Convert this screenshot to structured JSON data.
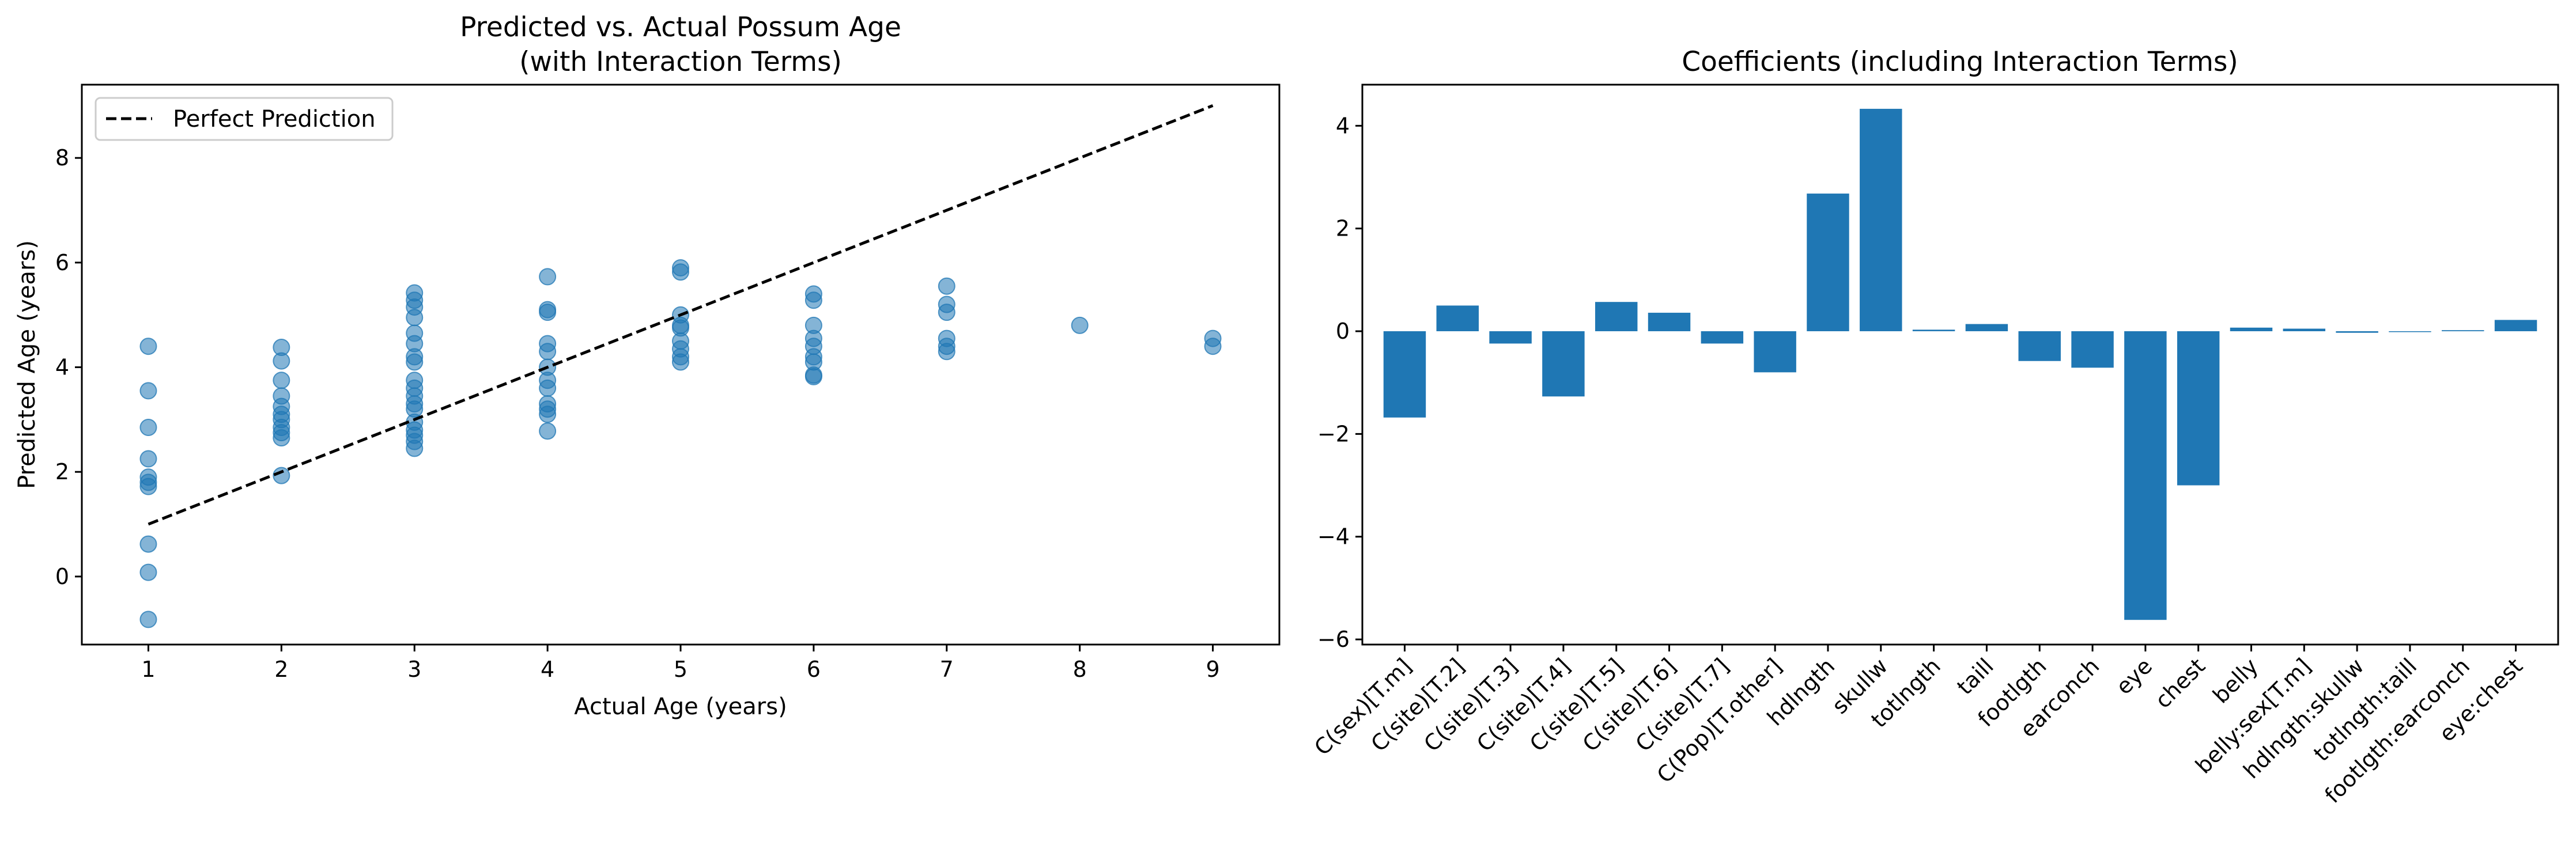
{
  "chart_data": [
    {
      "type": "scatter",
      "title": "Predicted vs. Actual Possum Age",
      "subtitle": "(with Interaction Terms)",
      "xlabel": "Actual Age (years)",
      "ylabel": "Predicted Age (years)",
      "xlim": [
        0.5,
        9.5
      ],
      "ylim": [
        -1.3,
        9.4
      ],
      "xticks": [
        1,
        2,
        3,
        4,
        5,
        6,
        7,
        8,
        9
      ],
      "yticks": [
        0,
        2,
        4,
        6,
        8
      ],
      "grid": false,
      "legend_position": "top-left",
      "point_color": "#1f77b4",
      "line_color": "#000000",
      "points": [
        {
          "x": 1,
          "y": 4.4
        },
        {
          "x": 1,
          "y": 3.55
        },
        {
          "x": 1,
          "y": 2.85
        },
        {
          "x": 1,
          "y": 2.25
        },
        {
          "x": 1,
          "y": 1.9
        },
        {
          "x": 1,
          "y": 1.8
        },
        {
          "x": 1,
          "y": 1.72
        },
        {
          "x": 1,
          "y": 0.62
        },
        {
          "x": 1,
          "y": 0.08
        },
        {
          "x": 1,
          "y": -0.82
        },
        {
          "x": 2,
          "y": 4.38
        },
        {
          "x": 2,
          "y": 4.12
        },
        {
          "x": 2,
          "y": 3.75
        },
        {
          "x": 2,
          "y": 3.45
        },
        {
          "x": 2,
          "y": 3.25
        },
        {
          "x": 2,
          "y": 3.1
        },
        {
          "x": 2,
          "y": 3.0
        },
        {
          "x": 2,
          "y": 2.85
        },
        {
          "x": 2,
          "y": 2.75
        },
        {
          "x": 2,
          "y": 2.65
        },
        {
          "x": 2,
          "y": 1.93
        },
        {
          "x": 3,
          "y": 5.42
        },
        {
          "x": 3,
          "y": 5.28
        },
        {
          "x": 3,
          "y": 5.15
        },
        {
          "x": 3,
          "y": 4.95
        },
        {
          "x": 3,
          "y": 4.65
        },
        {
          "x": 3,
          "y": 4.45
        },
        {
          "x": 3,
          "y": 4.2
        },
        {
          "x": 3,
          "y": 4.1
        },
        {
          "x": 3,
          "y": 3.75
        },
        {
          "x": 3,
          "y": 3.6
        },
        {
          "x": 3,
          "y": 3.45
        },
        {
          "x": 3,
          "y": 3.3
        },
        {
          "x": 3,
          "y": 3.2
        },
        {
          "x": 3,
          "y": 2.95
        },
        {
          "x": 3,
          "y": 2.8
        },
        {
          "x": 3,
          "y": 2.7
        },
        {
          "x": 3,
          "y": 2.58
        },
        {
          "x": 3,
          "y": 2.45
        },
        {
          "x": 4,
          "y": 5.73
        },
        {
          "x": 4,
          "y": 5.1
        },
        {
          "x": 4,
          "y": 5.05
        },
        {
          "x": 4,
          "y": 4.45
        },
        {
          "x": 4,
          "y": 4.3
        },
        {
          "x": 4,
          "y": 4.0
        },
        {
          "x": 4,
          "y": 3.75
        },
        {
          "x": 4,
          "y": 3.6
        },
        {
          "x": 4,
          "y": 3.3
        },
        {
          "x": 4,
          "y": 3.2
        },
        {
          "x": 4,
          "y": 3.1
        },
        {
          "x": 4,
          "y": 2.78
        },
        {
          "x": 5,
          "y": 5.9
        },
        {
          "x": 5,
          "y": 5.82
        },
        {
          "x": 5,
          "y": 5.0
        },
        {
          "x": 5,
          "y": 4.8
        },
        {
          "x": 5,
          "y": 4.75
        },
        {
          "x": 5,
          "y": 4.5
        },
        {
          "x": 5,
          "y": 4.35
        },
        {
          "x": 5,
          "y": 4.2
        },
        {
          "x": 5,
          "y": 4.1
        },
        {
          "x": 6,
          "y": 5.4
        },
        {
          "x": 6,
          "y": 5.28
        },
        {
          "x": 6,
          "y": 4.8
        },
        {
          "x": 6,
          "y": 4.55
        },
        {
          "x": 6,
          "y": 4.4
        },
        {
          "x": 6,
          "y": 4.2
        },
        {
          "x": 6,
          "y": 4.1
        },
        {
          "x": 6,
          "y": 3.85
        },
        {
          "x": 6,
          "y": 3.82
        },
        {
          "x": 7,
          "y": 5.55
        },
        {
          "x": 7,
          "y": 5.2
        },
        {
          "x": 7,
          "y": 5.05
        },
        {
          "x": 7,
          "y": 4.55
        },
        {
          "x": 7,
          "y": 4.4
        },
        {
          "x": 7,
          "y": 4.3
        },
        {
          "x": 8,
          "y": 4.8
        },
        {
          "x": 9,
          "y": 4.55
        },
        {
          "x": 9,
          "y": 4.4
        }
      ],
      "series": [
        {
          "name": "Perfect Prediction",
          "style": "dashed",
          "x": [
            1,
            9
          ],
          "y": [
            1,
            9
          ]
        }
      ]
    },
    {
      "type": "bar",
      "title": "Coefficients (including Interaction Terms)",
      "xlabel": "",
      "ylabel": "",
      "ylim": [
        -6.1,
        4.8
      ],
      "yticks": [
        -6,
        -4,
        -2,
        0,
        2,
        4
      ],
      "grid": false,
      "bar_color": "#1f77b4",
      "categories": [
        "C(sex)[T.m]",
        "C(site)[T.2]",
        "C(site)[T.3]",
        "C(site)[T.4]",
        "C(site)[T.5]",
        "C(site)[T.6]",
        "C(site)[T.7]",
        "C(Pop)[T.other]",
        "hdlngth",
        "skullw",
        "totlngth",
        "taill",
        "footlgth",
        "earconch",
        "eye",
        "chest",
        "belly",
        "belly:sex[T.m]",
        "hdlngth:skullw",
        "totlngth:taill",
        "footlgth:earconch",
        "eye:chest"
      ],
      "values": [
        -1.68,
        0.5,
        -0.24,
        -1.27,
        0.57,
        0.36,
        -0.24,
        -0.8,
        2.68,
        4.33,
        0.03,
        0.14,
        -0.58,
        -0.71,
        -5.62,
        -3.0,
        0.07,
        0.05,
        -0.03,
        0.0,
        0.02,
        0.22
      ]
    }
  ]
}
